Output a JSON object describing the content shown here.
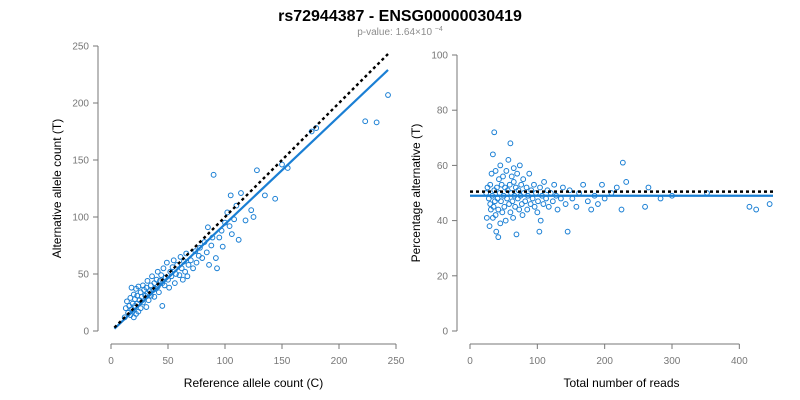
{
  "title": "rs72944387 - ENSG00000030419",
  "subtitle": {
    "prefix": "p-value: 1.64×10",
    "exponent": "−4"
  },
  "colors": {
    "points": "#1a7fd4",
    "fit": "#1a7fd4",
    "reference": "#000000",
    "axis": "#777777"
  },
  "chart_data": [
    {
      "type": "scatter",
      "xlabel": "Reference allele count (C)",
      "ylabel": "Alternative allele count (T)",
      "xlim": [
        0,
        250
      ],
      "ylim": [
        0,
        250
      ],
      "xticks": [
        0,
        50,
        100,
        150,
        200,
        250
      ],
      "yticks": [
        0,
        50,
        100,
        150,
        200,
        250
      ],
      "grid": false,
      "legend": "none",
      "fit_line": {
        "x": [
          3,
          243
        ],
        "y": [
          2,
          229
        ]
      },
      "reference_line": {
        "x": [
          3,
          243
        ],
        "y": [
          3,
          243
        ]
      },
      "points": [
        [
          12,
          12
        ],
        [
          13,
          20
        ],
        [
          14,
          26
        ],
        [
          15,
          16
        ],
        [
          16,
          22
        ],
        [
          17,
          14
        ],
        [
          17,
          29
        ],
        [
          18,
          19
        ],
        [
          18,
          38
        ],
        [
          19,
          17
        ],
        [
          19,
          24
        ],
        [
          20,
          12
        ],
        [
          20,
          32
        ],
        [
          21,
          22
        ],
        [
          21,
          28
        ],
        [
          22,
          15
        ],
        [
          22,
          37
        ],
        [
          23,
          24
        ],
        [
          23,
          31
        ],
        [
          24,
          17
        ],
        [
          24,
          39
        ],
        [
          25,
          27
        ],
        [
          26,
          34
        ],
        [
          26,
          20
        ],
        [
          27,
          30
        ],
        [
          28,
          40
        ],
        [
          28,
          25
        ],
        [
          29,
          36
        ],
        [
          30,
          31
        ],
        [
          31,
          21
        ],
        [
          31,
          38
        ],
        [
          32,
          33
        ],
        [
          32,
          44
        ],
        [
          33,
          27
        ],
        [
          34,
          35
        ],
        [
          35,
          40
        ],
        [
          35,
          31
        ],
        [
          36,
          48
        ],
        [
          37,
          36
        ],
        [
          38,
          42
        ],
        [
          38,
          30
        ],
        [
          39,
          37
        ],
        [
          40,
          45
        ],
        [
          41,
          39
        ],
        [
          41,
          52
        ],
        [
          42,
          34
        ],
        [
          43,
          44
        ],
        [
          44,
          49
        ],
        [
          45,
          42
        ],
        [
          45,
          22
        ],
        [
          46,
          55
        ],
        [
          47,
          40
        ],
        [
          48,
          47
        ],
        [
          49,
          60
        ],
        [
          50,
          45
        ],
        [
          51,
          38
        ],
        [
          52,
          52
        ],
        [
          53,
          48
        ],
        [
          54,
          56
        ],
        [
          55,
          62
        ],
        [
          56,
          42
        ],
        [
          57,
          50
        ],
        [
          58,
          58
        ],
        [
          60,
          49
        ],
        [
          61,
          65
        ],
        [
          62,
          55
        ],
        [
          63,
          45
        ],
        [
          64,
          61
        ],
        [
          65,
          52
        ],
        [
          66,
          68
        ],
        [
          67,
          48
        ],
        [
          68,
          58
        ],
        [
          70,
          62
        ],
        [
          72,
          55
        ],
        [
          74,
          70
        ],
        [
          75,
          60
        ],
        [
          77,
          66
        ],
        [
          78,
          73
        ],
        [
          80,
          64
        ],
        [
          82,
          78
        ],
        [
          84,
          69
        ],
        [
          85,
          91
        ],
        [
          86,
          58
        ],
        [
          88,
          75
        ],
        [
          89,
          82
        ],
        [
          90,
          137
        ],
        [
          92,
          64
        ],
        [
          93,
          55
        ],
        [
          95,
          82
        ],
        [
          97,
          88
        ],
        [
          98,
          74
        ],
        [
          100,
          95
        ],
        [
          102,
          104
        ],
        [
          104,
          92
        ],
        [
          105,
          119
        ],
        [
          106,
          85
        ],
        [
          108,
          98
        ],
        [
          110,
          110
        ],
        [
          112,
          80
        ],
        [
          114,
          121
        ],
        [
          118,
          97
        ],
        [
          123,
          106
        ],
        [
          125,
          100
        ],
        [
          128,
          141
        ],
        [
          135,
          119
        ],
        [
          144,
          116
        ],
        [
          150,
          146
        ],
        [
          155,
          143
        ],
        [
          176,
          175
        ],
        [
          180,
          178
        ],
        [
          223,
          184
        ],
        [
          233,
          183
        ],
        [
          243,
          207
        ]
      ]
    },
    {
      "type": "scatter",
      "xlabel": "Total number of reads",
      "ylabel": "Percentage alternative (T)",
      "xlim": [
        0,
        450
      ],
      "ylim": [
        0,
        100
      ],
      "xticks": [
        0,
        100,
        200,
        300,
        400
      ],
      "yticks": [
        0,
        20,
        40,
        60,
        80,
        100
      ],
      "grid": false,
      "legend": "none",
      "fit_line": {
        "x": [
          0,
          450
        ],
        "y": [
          49,
          49
        ]
      },
      "reference_line": {
        "x": [
          0,
          450
        ],
        "y": [
          50.5,
          50.5
        ]
      },
      "points": [
        [
          24,
          50
        ],
        [
          25,
          41
        ],
        [
          26,
          52
        ],
        [
          28,
          48
        ],
        [
          29,
          38
        ],
        [
          30,
          46
        ],
        [
          30,
          53
        ],
        [
          31,
          44
        ],
        [
          32,
          57
        ],
        [
          33,
          49
        ],
        [
          34,
          41
        ],
        [
          34,
          64
        ],
        [
          35,
          45
        ],
        [
          36,
          51
        ],
        [
          36,
          72
        ],
        [
          37,
          47
        ],
        [
          38,
          42
        ],
        [
          38,
          58
        ],
        [
          39,
          36
        ],
        [
          40,
          52
        ],
        [
          41,
          48
        ],
        [
          42,
          44
        ],
        [
          42,
          34
        ],
        [
          43,
          55
        ],
        [
          44,
          50
        ],
        [
          45,
          60
        ],
        [
          45,
          39
        ],
        [
          46,
          47
        ],
        [
          47,
          53
        ],
        [
          48,
          43
        ],
        [
          49,
          56
        ],
        [
          50,
          49
        ],
        [
          51,
          45
        ],
        [
          52,
          52
        ],
        [
          53,
          40
        ],
        [
          54,
          58
        ],
        [
          55,
          48
        ],
        [
          56,
          51
        ],
        [
          57,
          62
        ],
        [
          58,
          46
        ],
        [
          59,
          53
        ],
        [
          60,
          43
        ],
        [
          60,
          68
        ],
        [
          61,
          50
        ],
        [
          62,
          56
        ],
        [
          63,
          47
        ],
        [
          64,
          41
        ],
        [
          65,
          54
        ],
        [
          65,
          59
        ],
        [
          66,
          49
        ],
        [
          67,
          45
        ],
        [
          68,
          52
        ],
        [
          69,
          35
        ],
        [
          70,
          57
        ],
        [
          71,
          48
        ],
        [
          72,
          51
        ],
        [
          73,
          44
        ],
        [
          74,
          60
        ],
        [
          75,
          49
        ],
        [
          76,
          53
        ],
        [
          77,
          46
        ],
        [
          78,
          42
        ],
        [
          79,
          55
        ],
        [
          80,
          50
        ],
        [
          82,
          47
        ],
        [
          84,
          52
        ],
        [
          85,
          44
        ],
        [
          86,
          49
        ],
        [
          88,
          57
        ],
        [
          90,
          46
        ],
        [
          91,
          51
        ],
        [
          93,
          48
        ],
        [
          95,
          53
        ],
        [
          96,
          45
        ],
        [
          98,
          50
        ],
        [
          100,
          43
        ],
        [
          101,
          47
        ],
        [
          103,
          36
        ],
        [
          104,
          52
        ],
        [
          105,
          40
        ],
        [
          107,
          49
        ],
        [
          109,
          46
        ],
        [
          110,
          54
        ],
        [
          113,
          48
        ],
        [
          115,
          51
        ],
        [
          117,
          45
        ],
        [
          120,
          50
        ],
        [
          123,
          47
        ],
        [
          125,
          53
        ],
        [
          128,
          49
        ],
        [
          130,
          44
        ],
        [
          135,
          48
        ],
        [
          138,
          52
        ],
        [
          142,
          46
        ],
        [
          145,
          36
        ],
        [
          148,
          51
        ],
        [
          152,
          48
        ],
        [
          158,
          45
        ],
        [
          162,
          50
        ],
        [
          168,
          53
        ],
        [
          175,
          47
        ],
        [
          180,
          44
        ],
        [
          185,
          49
        ],
        [
          190,
          46
        ],
        [
          196,
          53
        ],
        [
          200,
          48
        ],
        [
          210,
          50
        ],
        [
          218,
          52
        ],
        [
          225,
          44
        ],
        [
          227,
          61
        ],
        [
          232,
          54
        ],
        [
          260,
          45
        ],
        [
          265,
          52
        ],
        [
          283,
          48
        ],
        [
          300,
          49
        ],
        [
          352,
          50
        ],
        [
          415,
          45
        ],
        [
          425,
          44
        ],
        [
          445,
          46
        ]
      ]
    }
  ]
}
